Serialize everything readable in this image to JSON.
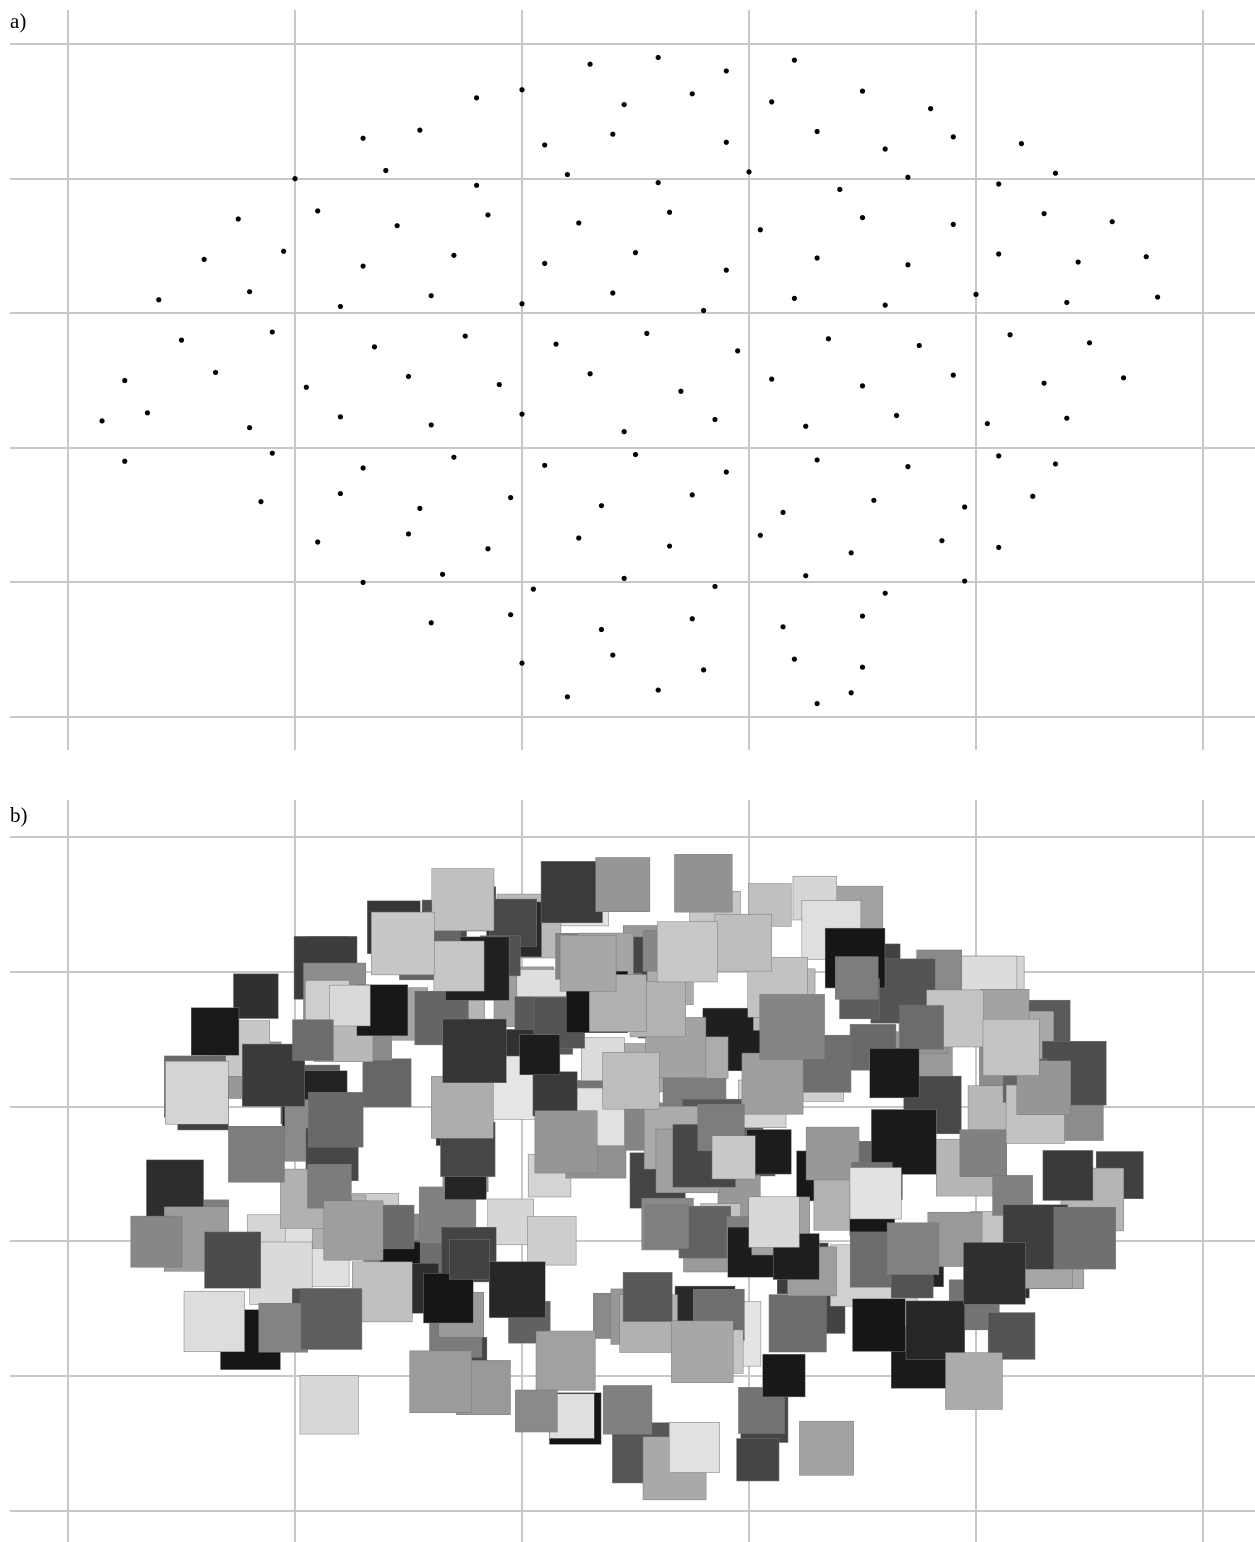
{
  "panels": {
    "a": "a)",
    "b": "b)"
  },
  "chart_data": {
    "type": "scatter",
    "color": "#000000",
    "xlim": [
      0,
      5
    ],
    "ylim": [
      0,
      5
    ],
    "x": [
      2.3,
      2.6,
      2.9,
      3.2,
      1.8,
      2.0,
      2.45,
      2.75,
      3.1,
      3.5,
      3.8,
      1.3,
      1.55,
      2.1,
      2.4,
      2.9,
      3.3,
      3.6,
      3.9,
      4.2,
      1.0,
      1.4,
      1.8,
      2.2,
      2.6,
      3.0,
      3.4,
      3.7,
      4.1,
      4.35,
      0.75,
      1.1,
      1.45,
      1.85,
      2.25,
      2.65,
      3.05,
      3.5,
      3.9,
      4.3,
      4.6,
      0.6,
      0.95,
      1.3,
      1.7,
      2.1,
      2.5,
      2.9,
      3.3,
      3.7,
      4.1,
      4.45,
      4.75,
      0.4,
      0.8,
      1.2,
      1.6,
      2.0,
      2.4,
      2.8,
      3.2,
      3.6,
      4.0,
      4.4,
      4.8,
      0.5,
      0.9,
      1.35,
      1.75,
      2.15,
      2.55,
      2.95,
      3.35,
      3.75,
      4.15,
      4.5,
      0.25,
      0.65,
      1.05,
      1.5,
      1.9,
      2.3,
      2.7,
      3.1,
      3.5,
      3.9,
      4.3,
      4.65,
      0.15,
      0.35,
      0.8,
      1.2,
      1.6,
      2.0,
      2.45,
      2.85,
      3.25,
      3.65,
      4.05,
      4.4,
      0.25,
      0.9,
      1.3,
      1.7,
      2.1,
      2.5,
      2.9,
      3.3,
      3.7,
      4.1,
      4.35,
      0.85,
      1.2,
      1.55,
      1.95,
      2.35,
      2.75,
      3.15,
      3.55,
      3.95,
      4.25,
      1.1,
      1.5,
      1.85,
      2.25,
      2.65,
      3.05,
      3.45,
      3.85,
      4.1,
      1.3,
      1.65,
      2.05,
      2.45,
      2.85,
      3.25,
      3.6,
      3.95,
      1.6,
      1.95,
      2.35,
      2.75,
      3.15,
      3.5,
      2.0,
      2.4,
      2.8,
      3.2,
      3.5,
      2.2,
      2.6,
      3.3,
      3.45
    ],
    "values": [
      4.85,
      4.9,
      4.8,
      4.88,
      4.6,
      4.66,
      4.55,
      4.63,
      4.57,
      4.65,
      4.52,
      4.3,
      4.36,
      4.25,
      4.33,
      4.27,
      4.35,
      4.22,
      4.31,
      4.26,
      4.0,
      4.06,
      3.95,
      4.03,
      3.97,
      4.05,
      3.92,
      4.01,
      3.96,
      4.04,
      3.7,
      3.76,
      3.65,
      3.73,
      3.67,
      3.75,
      3.62,
      3.71,
      3.66,
      3.74,
      3.68,
      3.4,
      3.46,
      3.35,
      3.43,
      3.37,
      3.45,
      3.32,
      3.41,
      3.36,
      3.44,
      3.38,
      3.42,
      3.1,
      3.16,
      3.05,
      3.13,
      3.07,
      3.15,
      3.02,
      3.11,
      3.06,
      3.14,
      3.08,
      3.12,
      2.8,
      2.86,
      2.75,
      2.83,
      2.77,
      2.85,
      2.72,
      2.81,
      2.76,
      2.84,
      2.78,
      2.5,
      2.56,
      2.45,
      2.53,
      2.47,
      2.55,
      2.42,
      2.51,
      2.46,
      2.54,
      2.48,
      2.52,
      2.2,
      2.26,
      2.15,
      2.23,
      2.17,
      2.25,
      2.12,
      2.21,
      2.16,
      2.24,
      2.18,
      2.22,
      1.9,
      1.96,
      1.85,
      1.93,
      1.87,
      1.95,
      1.82,
      1.91,
      1.86,
      1.94,
      1.88,
      1.6,
      1.66,
      1.55,
      1.63,
      1.57,
      1.65,
      1.52,
      1.61,
      1.56,
      1.64,
      1.3,
      1.36,
      1.25,
      1.33,
      1.27,
      1.35,
      1.22,
      1.31,
      1.26,
      1.0,
      1.06,
      0.95,
      1.03,
      0.97,
      1.05,
      0.92,
      1.01,
      0.7,
      0.76,
      0.65,
      0.73,
      0.67,
      0.75,
      0.4,
      0.46,
      0.35,
      0.43,
      0.37,
      0.15,
      0.2,
      0.1,
      0.18
    ]
  }
}
